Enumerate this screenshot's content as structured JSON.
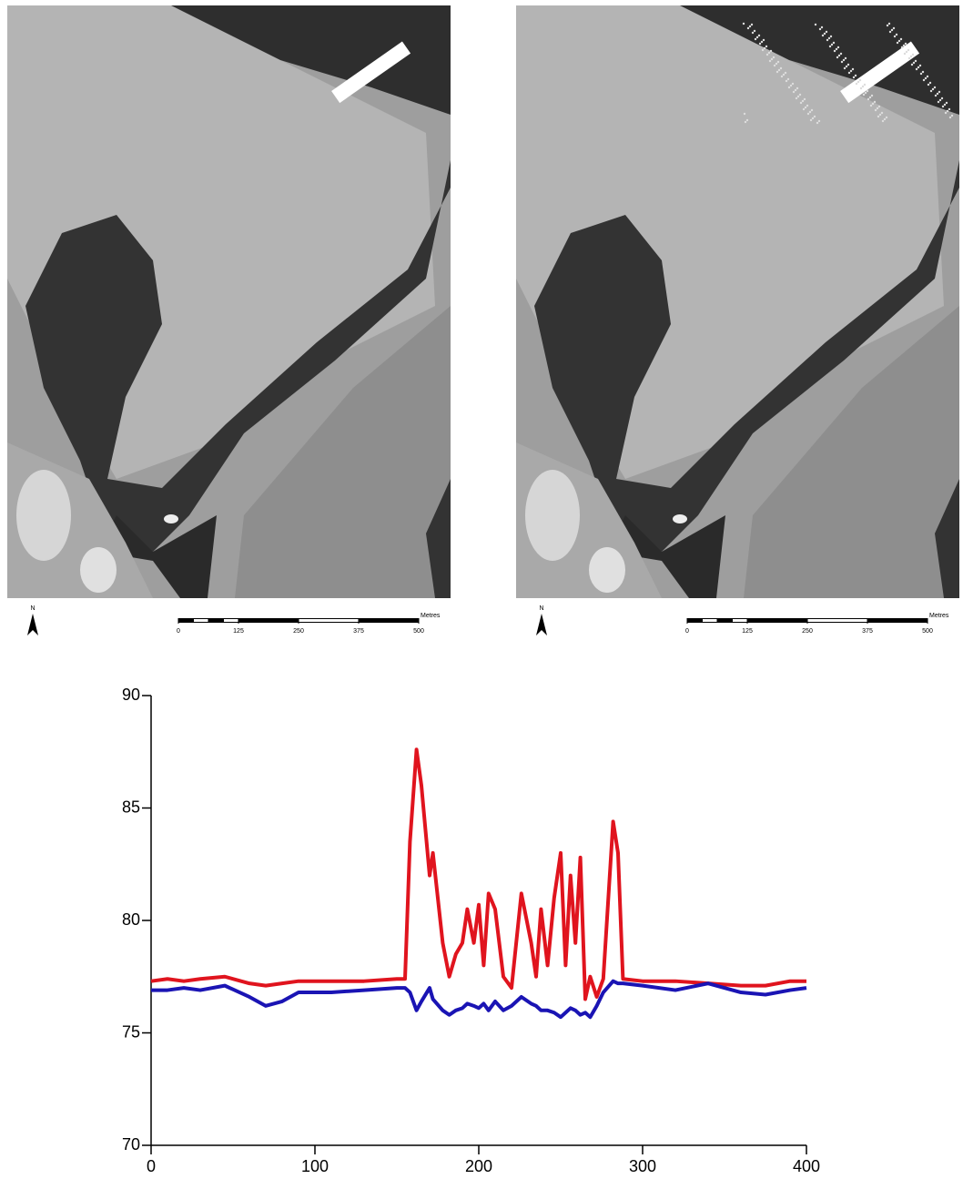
{
  "maps": [
    {
      "north_label": "N",
      "scale_unit": "Metres",
      "scale_ticks": [
        0,
        125,
        250,
        375,
        500
      ]
    },
    {
      "north_label": "N",
      "scale_unit": "Metres",
      "scale_ticks": [
        0,
        125,
        250,
        375,
        500
      ]
    }
  ],
  "chart_data": {
    "type": "line",
    "x": [
      0,
      10,
      20,
      30,
      45,
      60,
      70,
      80,
      90,
      110,
      130,
      150,
      155,
      158,
      162,
      165,
      170,
      172,
      178,
      182,
      186,
      190,
      193,
      197,
      200,
      203,
      206,
      210,
      215,
      220,
      226,
      232,
      235,
      238,
      242,
      246,
      250,
      253,
      256,
      259,
      262,
      265,
      268,
      272,
      276,
      282,
      285,
      288,
      300,
      320,
      340,
      360,
      375,
      390,
      400
    ],
    "series": [
      {
        "color": "#e0141e",
        "values": [
          77.3,
          77.4,
          77.3,
          77.4,
          77.5,
          77.2,
          77.1,
          77.2,
          77.3,
          77.3,
          77.3,
          77.4,
          77.4,
          83.5,
          87.6,
          86.0,
          82.0,
          83.0,
          79.0,
          77.5,
          78.5,
          79.0,
          80.5,
          79.0,
          80.7,
          78.0,
          81.2,
          80.5,
          77.5,
          77.0,
          81.2,
          79.0,
          77.5,
          80.5,
          78.0,
          81.0,
          83.0,
          78.0,
          82.0,
          79.0,
          82.8,
          76.5,
          77.5,
          76.6,
          77.4,
          84.4,
          83.0,
          77.4,
          77.3,
          77.3,
          77.2,
          77.1,
          77.1,
          77.3,
          77.3
        ]
      },
      {
        "color": "#1a14b4",
        "values": [
          76.9,
          76.9,
          77.0,
          76.9,
          77.1,
          76.6,
          76.2,
          76.4,
          76.8,
          76.8,
          76.9,
          77.0,
          77.0,
          76.8,
          76.0,
          76.4,
          77.0,
          76.5,
          76.0,
          75.8,
          76.0,
          76.1,
          76.3,
          76.2,
          76.1,
          76.3,
          76.0,
          76.4,
          76.0,
          76.2,
          76.6,
          76.3,
          76.2,
          76.0,
          76.0,
          75.9,
          75.7,
          75.9,
          76.1,
          76.0,
          75.8,
          75.9,
          75.7,
          76.2,
          76.8,
          77.3,
          77.2,
          77.2,
          77.1,
          76.9,
          77.2,
          76.8,
          76.7,
          76.9,
          77.0
        ]
      }
    ],
    "xlim": [
      0,
      400
    ],
    "xticks": [
      0,
      100,
      200,
      300,
      400
    ],
    "ylim": [
      70,
      90
    ],
    "yticks": [
      70,
      75,
      80,
      85,
      90
    ]
  }
}
